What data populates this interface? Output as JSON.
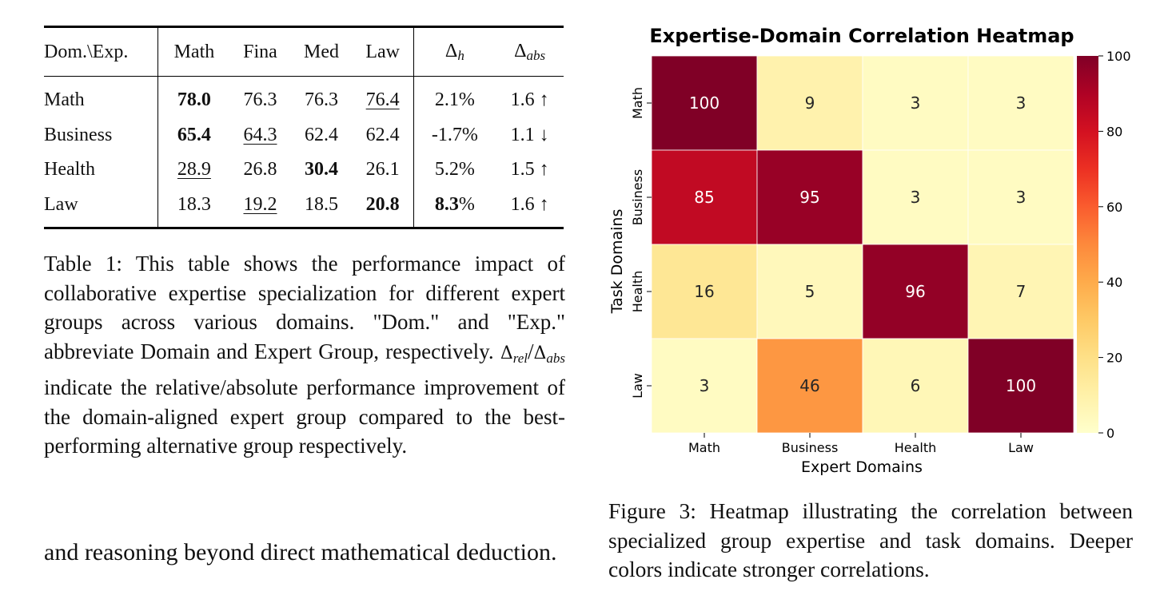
{
  "table": {
    "headers": {
      "dom_exp": "Dom.\\Exp.",
      "math": "Math",
      "fina": "Fina",
      "med": "Med",
      "law": "Law",
      "delta_h_sym": "Δ",
      "delta_h_sub": "h",
      "delta_abs_sym": "Δ",
      "delta_abs_sub": "abs"
    },
    "rows": [
      {
        "domain": "Math",
        "math": "78.0",
        "fina": "76.3",
        "med": "76.3",
        "law": "76.4",
        "delta_h": "2.1%",
        "delta_abs": "1.6 ↑"
      },
      {
        "domain": "Business",
        "math": "65.4",
        "fina": "64.3",
        "med": "62.4",
        "law": "62.4",
        "delta_h": "-1.7%",
        "delta_abs": "1.1 ↓"
      },
      {
        "domain": "Health",
        "math": "28.9",
        "fina": "26.8",
        "med": "30.4",
        "law": "26.1",
        "delta_h": "5.2%",
        "delta_abs": "1.5 ↑"
      },
      {
        "domain": "Law",
        "math": "18.3",
        "fina": "19.2",
        "med": "18.5",
        "law": "20.8",
        "delta_h": "8.3%",
        "delta_abs": "1.6 ↑"
      }
    ]
  },
  "table_caption": {
    "text_a": "Table 1: This table shows the performance impact of collaborative expertise specialization for different expert groups across various domains. \"Dom.\" and \"Exp.\" abbreviate Domain and Expert Group, respectively. ",
    "sym_rel": "Δ",
    "sub_rel": "rel",
    "slash": "/",
    "sym_abs": "Δ",
    "sub_abs": "abs",
    "text_b": " indicate the relative/absolute performance improvement of the domain-aligned expert group compared to the best-performing alternative group respectively."
  },
  "body_text": "and reasoning beyond direct mathematical deduction.",
  "figure_caption": "Figure 3: Heatmap illustrating the correlation between specialized group expertise and task domains. Deeper colors indicate stronger correlations.",
  "chart_data": {
    "type": "heatmap",
    "title": "Expertise-Domain Correlation Heatmap",
    "xlabel": "Expert Domains",
    "ylabel": "Task Domains",
    "x_categories": [
      "Math",
      "Business",
      "Health",
      "Law"
    ],
    "y_categories": [
      "Math",
      "Business",
      "Health",
      "Law"
    ],
    "values": [
      [
        100,
        9,
        3,
        3
      ],
      [
        85,
        95,
        3,
        3
      ],
      [
        16,
        5,
        96,
        7
      ],
      [
        3,
        46,
        6,
        100
      ]
    ],
    "colorbar_ticks": [
      0,
      20,
      40,
      60,
      80,
      100
    ],
    "value_range": [
      0,
      100
    ],
    "colormap": "YlOrRd",
    "colormap_stops": [
      "#ffffcc",
      "#fff1a9",
      "#fee087",
      "#fec965",
      "#feab4b",
      "#fd893c",
      "#fa5c2e",
      "#ec3023",
      "#d31121",
      "#af0225",
      "#800026"
    ]
  }
}
